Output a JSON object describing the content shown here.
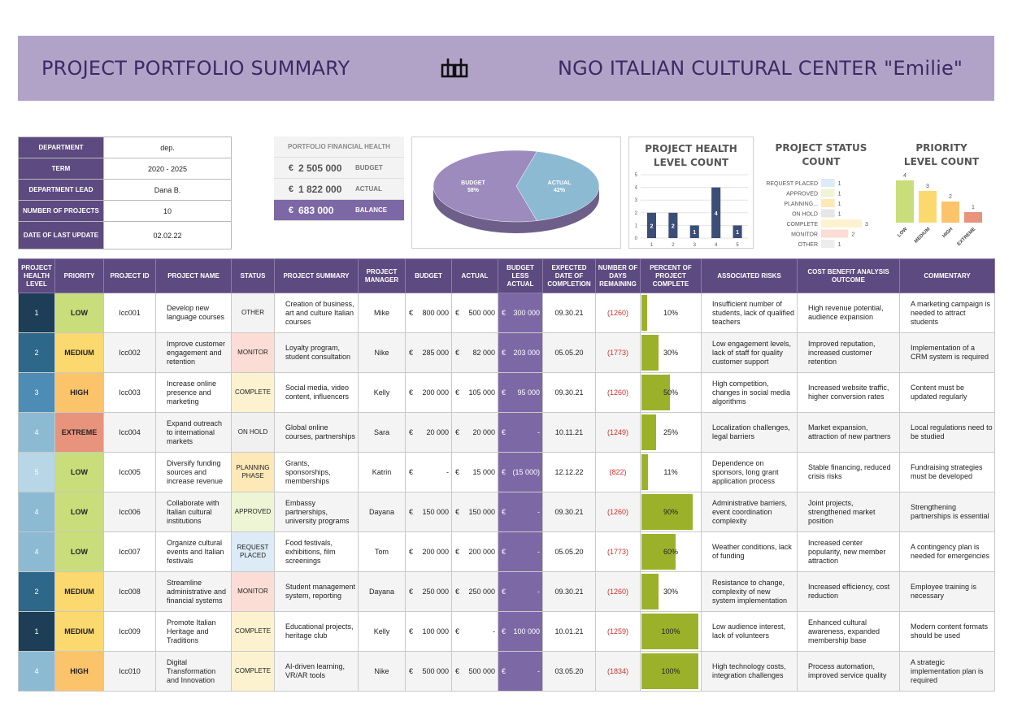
{
  "header": {
    "title": "PROJECT PORTFOLIO SUMMARY",
    "org": "NGO ITALIAN CULTURAL CENTER  \"Emilie\"",
    "logo_icon": "db-logo-icon"
  },
  "info": {
    "department": {
      "label": "DEPARTMENT",
      "value": "dep."
    },
    "term": {
      "label": "TERM",
      "value": "2020 - 2025"
    },
    "lead": {
      "label": "DEPARTMENT LEAD",
      "value": "Dana B."
    },
    "num_projects": {
      "label": "NUMBER OF PROJECTS",
      "value": "10"
    },
    "last_update": {
      "label": "DATE OF LAST UPDATE",
      "value": "02.02.22"
    }
  },
  "financial": {
    "title": "PORTFOLIO FINANCIAL HEALTH",
    "currency": "€",
    "budget": {
      "amount": "2 505 000",
      "label": "BUDGET"
    },
    "actual": {
      "amount": "1 822 000",
      "label": "ACTUAL"
    },
    "balance": {
      "amount": "683 000",
      "label": "BALANCE"
    }
  },
  "chart_data": [
    {
      "type": "pie",
      "title": "",
      "categories": [
        "BUDGET",
        "ACTUAL"
      ],
      "values": [
        58,
        42
      ],
      "value_labels": [
        "58%",
        "42%"
      ],
      "colors": [
        "#9d8bbd",
        "#8cbad3"
      ]
    },
    {
      "type": "bar",
      "title": "PROJECT HEALTH LEVEL COUNT",
      "categories": [
        "1",
        "2",
        "3",
        "4",
        "5"
      ],
      "values": [
        2,
        2,
        1,
        4,
        1
      ],
      "ylim": [
        0,
        5
      ],
      "yticks": [
        "0",
        "1",
        "2",
        "3",
        "4",
        "5"
      ],
      "grid": true,
      "color": "#3b4e78"
    },
    {
      "type": "bar",
      "orientation": "horizontal",
      "title": "PROJECT STATUS COUNT",
      "categories": [
        "REQUEST PLACED",
        "APPROVED",
        "PLANNING...",
        "ON HOLD",
        "COMPLETE",
        "MONITOR",
        "OTHER"
      ],
      "values": [
        1,
        1,
        1,
        1,
        3,
        2,
        1
      ],
      "colors": [
        "#dcebf5",
        "#eef5d4",
        "#fde8b8",
        "#e6e6e6",
        "#fdf2cf",
        "#fbddd5",
        "#ededed"
      ]
    },
    {
      "type": "bar",
      "title": "PRIORITY LEVEL COUNT",
      "categories": [
        "LOW",
        "MEDIUM",
        "HIGH",
        "EXTREME"
      ],
      "values": [
        4,
        3,
        2,
        1
      ],
      "colors": [
        "#c9dd7b",
        "#fcd96e",
        "#fbc36a",
        "#e8937c"
      ]
    }
  ],
  "table": {
    "headers": [
      "PROJECT HEALTH LEVEL",
      "PRIORITY",
      "PROJECT ID",
      "PROJECT NAME",
      "STATUS",
      "PROJECT SUMMARY",
      "PROJECT MANAGER",
      "BUDGET",
      "ACTUAL",
      "BUDGET LESS ACTUAL",
      "EXPECTED DATE OF COMPLETION",
      "NUMBER OF DAYS REMAINING",
      "PERCENT OF PROJECT COMPLETE",
      "ASSOCIATED RISKS",
      "COST BENEFIT ANALYSIS OUTCOME",
      "COMMENTARY"
    ],
    "rows": [
      {
        "health": "1",
        "priority": "LOW",
        "id": "Icc001",
        "name": "Develop new language courses",
        "status": "OTHER",
        "summary": "Creation of business, art and culture Italian courses",
        "manager": "Mike",
        "budget": "800 000",
        "actual": "500 000",
        "diff": "300 000",
        "date": "09.30.21",
        "days": "(1260)",
        "pct": 10,
        "pct_label": "10%",
        "risks": "Insufficient number of students, lack of qualified teachers",
        "cba": "High revenue potential, audience expansion",
        "comment": "A marketing campaign is needed to attract students"
      },
      {
        "health": "2",
        "priority": "MEDIUM",
        "id": "Icc002",
        "name": "Improve customer engagement and retention",
        "status": "MONITOR",
        "summary": "Loyalty program, student consultation",
        "manager": "Nike",
        "budget": "285 000",
        "actual": "82 000",
        "diff": "203 000",
        "date": "05.05.20",
        "days": "(1773)",
        "pct": 30,
        "pct_label": "30%",
        "risks": "Low engagement levels, lack of staff for quality customer support",
        "cba": "Improved reputation, increased customer retention",
        "comment": "Implementation of a CRM system is required"
      },
      {
        "health": "3",
        "priority": "HIGH",
        "id": "Icc003",
        "name": "Increase online presence and marketing",
        "status": "COMPLETE",
        "summary": "Social media, video content, influencers",
        "manager": "Kelly",
        "budget": "200 000",
        "actual": "105 000",
        "diff": "95 000",
        "date": "09.30.21",
        "days": "(1260)",
        "pct": 50,
        "pct_label": "50%",
        "risks": "High competition, changes in social media algorithms",
        "cba": "Increased website traffic, higher conversion rates",
        "comment": "Content must be updated regularly"
      },
      {
        "health": "4",
        "priority": "EXTREME",
        "id": "Icc004",
        "name": "Expand outreach to international markets",
        "status": "ON HOLD",
        "summary": "Global online courses, partnerships",
        "manager": "Sara",
        "budget": "20 000",
        "actual": "20 000",
        "diff": "-",
        "date": "10.11.21",
        "days": "(1249)",
        "pct": 25,
        "pct_label": "25%",
        "risks": "Localization challenges, legal barriers",
        "cba": "Market expansion, attraction of new partners",
        "comment": "Local regulations need to be studied"
      },
      {
        "health": "5",
        "priority": "LOW",
        "id": "Icc005",
        "name": "Diversify funding sources and increase revenue",
        "status": "PLANNING PHASE",
        "summary": "Grants, sponsorships, memberships",
        "manager": "Katrin",
        "budget": "-",
        "actual": "15 000",
        "diff": "(15 000)",
        "date": "12.12.22",
        "days": "(822)",
        "pct": 11,
        "pct_label": "11%",
        "risks": "Dependence on sponsors, long grant application process",
        "cba": "Stable financing, reduced crisis risks",
        "comment": "Fundraising strategies must be developed"
      },
      {
        "health": "4",
        "priority": "LOW",
        "id": "Icc006",
        "name": "Collaborate with Italian cultural institutions",
        "status": "APPROVED",
        "summary": "Embassy partnerships, university programs",
        "manager": "Dayana",
        "budget": "150 000",
        "actual": "150 000",
        "diff": "-",
        "date": "09.30.21",
        "days": "(1260)",
        "pct": 90,
        "pct_label": "90%",
        "risks": "Administrative barriers, event coordination complexity",
        "cba": "Joint projects, strengthened market position",
        "comment": "Strengthening partnerships is essential"
      },
      {
        "health": "4",
        "priority": "LOW",
        "id": "Icc007",
        "name": "Organize cultural events and Italian festivals",
        "status": "REQUEST PLACED",
        "summary": "Food festivals, exhibitions, film screenings",
        "manager": "Tom",
        "budget": "200 000",
        "actual": "200 000",
        "diff": "-",
        "date": "05.05.20",
        "days": "(1773)",
        "pct": 60,
        "pct_label": "60%",
        "risks": "Weather conditions, lack of funding",
        "cba": "Increased center popularity, new member attraction",
        "comment": "A contingency plan is needed for emergencies"
      },
      {
        "health": "2",
        "priority": "MEDIUM",
        "id": "Icc008",
        "name": "Streamline administrative and financial systems",
        "status": "MONITOR",
        "summary": "Student management system, reporting",
        "manager": "Dayana",
        "budget": "250 000",
        "actual": "250 000",
        "diff": "-",
        "date": "09.30.21",
        "days": "(1260)",
        "pct": 30,
        "pct_label": "30%",
        "risks": "Resistance to change, complexity of new system implementation",
        "cba": "Increased efficiency, cost reduction",
        "comment": "Employee training is necessary"
      },
      {
        "health": "1",
        "priority": "MEDIUM",
        "id": "Icc009",
        "name": "Promote Italian Heritage and Traditions",
        "status": "COMPLETE",
        "summary": "Educational projects, heritage club",
        "manager": "Kelly",
        "budget": "100 000",
        "actual": "-",
        "diff": "100 000",
        "date": "10.01.21",
        "days": "(1259)",
        "pct": 100,
        "pct_label": "100%",
        "risks": "Low audience interest, lack of volunteers",
        "cba": "Enhanced cultural awareness, expanded membership base",
        "comment": "Modern content formats should be used"
      },
      {
        "health": "4",
        "priority": "HIGH",
        "id": "Icc010",
        "name": "Digital Transformation and Innovation",
        "status": "COMPLETE",
        "summary": "AI-driven learning, VR/AR tools",
        "manager": "Nike",
        "budget": "500 000",
        "actual": "500 000",
        "diff": "-",
        "date": "03.05.20",
        "days": "(1834)",
        "pct": 100,
        "pct_label": "100%",
        "risks": "High technology costs, integration challenges",
        "cba": "Process automation, improved service quality",
        "comment": "A strategic implementation plan is required"
      }
    ]
  }
}
